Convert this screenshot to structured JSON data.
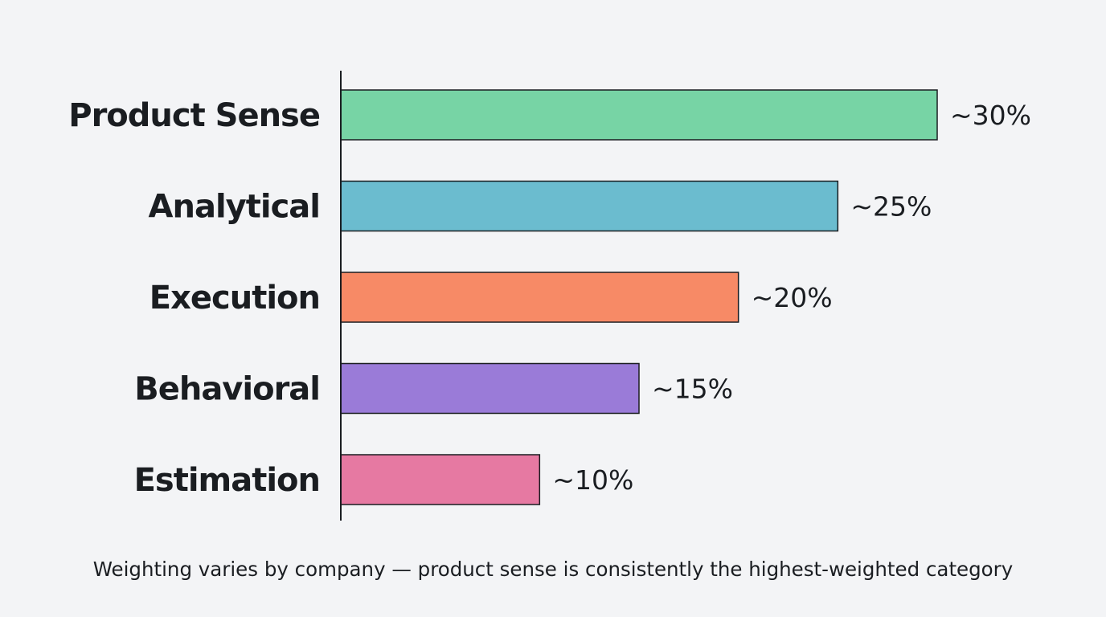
{
  "chart_data": {
    "type": "bar",
    "orientation": "horizontal",
    "categories": [
      "Product Sense",
      "Analytical",
      "Execution",
      "Behavioral",
      "Estimation"
    ],
    "values": [
      30,
      25,
      20,
      15,
      10
    ],
    "value_labels": [
      "~30%",
      "~25%",
      "~20%",
      "~15%",
      "~10%"
    ],
    "colors": [
      "#77d4a5",
      "#6bbccf",
      "#f78a66",
      "#9a7bd8",
      "#e679a2"
    ],
    "title": "",
    "xlabel": "",
    "ylabel": "",
    "xlim": [
      0,
      30
    ],
    "grid": false,
    "legend": "none",
    "caption": "Weighting varies by company — product sense is consistently the highest-weighted category"
  }
}
